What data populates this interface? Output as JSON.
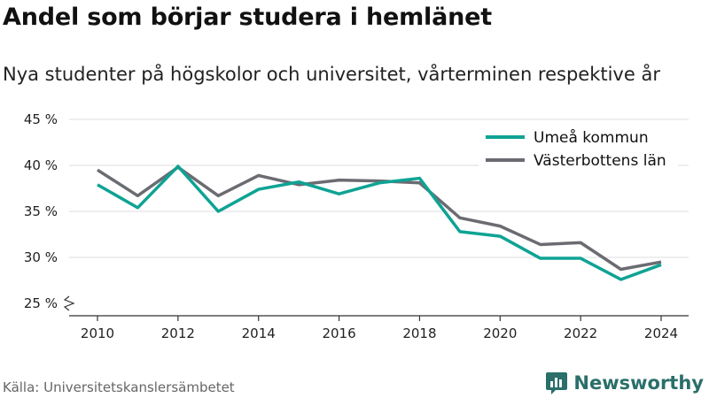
{
  "header": {
    "title": "Andel som börjar studera i hemlänet",
    "subtitle": "Nya studenter på högskolor och universitet, vårterminen respektive år"
  },
  "footer": {
    "source": "Källa: Universitetskanslersämbetet",
    "brand": "Newsworthy",
    "brand_icon": "newsworthy-logo-icon",
    "brand_color": "#2a6f6a"
  },
  "chart_data": {
    "type": "line",
    "x": [
      2010,
      2011,
      2012,
      2013,
      2014,
      2015,
      2016,
      2017,
      2018,
      2019,
      2020,
      2021,
      2022,
      2023,
      2024
    ],
    "series": [
      {
        "name": "Umeå kommun",
        "color": "#0ea394",
        "values": [
          37.9,
          35.4,
          39.9,
          35.0,
          37.4,
          38.2,
          36.9,
          38.1,
          38.6,
          32.8,
          32.3,
          29.9,
          29.9,
          27.6,
          29.2
        ]
      },
      {
        "name": "Västerbottens län",
        "color": "#6b6b72",
        "values": [
          39.5,
          36.7,
          39.8,
          36.7,
          38.9,
          37.9,
          38.4,
          38.3,
          38.1,
          34.3,
          33.4,
          31.4,
          31.6,
          28.7,
          29.5
        ]
      }
    ],
    "xticks": [
      2010,
      2012,
      2014,
      2016,
      2018,
      2020,
      2022,
      2024
    ],
    "xtick_labels": [
      "2010",
      "2012",
      "2014",
      "2016",
      "2018",
      "2020",
      "2022",
      "2024"
    ],
    "yticks": [
      25,
      30,
      35,
      40,
      45
    ],
    "ytick_labels": [
      "25 %",
      "30 %",
      "35 %",
      "40 %",
      "45 %"
    ],
    "ylim": [
      25,
      45
    ],
    "xlim": [
      2010,
      2024
    ],
    "y_axis_break": true,
    "grid": "horizontal",
    "legend_position": "top-right"
  }
}
